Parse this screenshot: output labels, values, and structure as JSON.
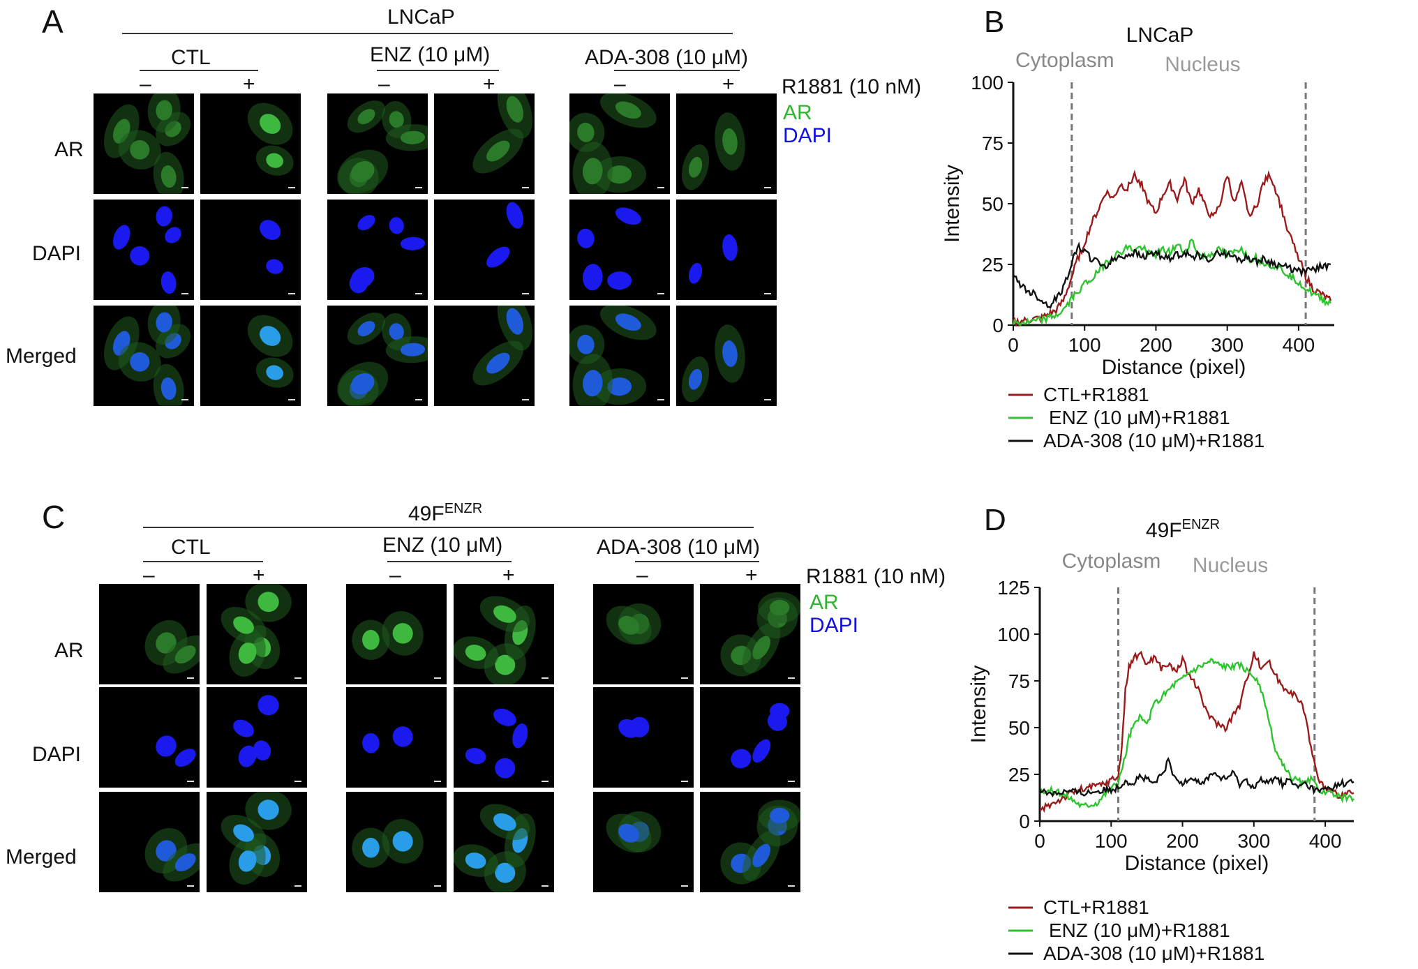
{
  "panels": {
    "A": {
      "letter": "A",
      "cell_line": "LNCaP",
      "groups": [
        "CTL",
        "ENZ (10 μM)",
        "ADA-308 (10 μM)"
      ],
      "minus": "–",
      "plus": "+",
      "treatment": "R1881 (10 nM)",
      "legend_ar": "AR",
      "legend_dapi": "DAPI",
      "rows": [
        "AR",
        "DAPI",
        "Merged"
      ]
    },
    "C": {
      "letter": "C",
      "cell_line": "49F",
      "cell_line_sup": "ENZR",
      "groups": [
        "CTL",
        "ENZ (10 μM)",
        "ADA-308 (10 μM)"
      ],
      "minus": "–",
      "plus": "+",
      "treatment": "R1881 (10 nM)",
      "legend_ar": "AR",
      "legend_dapi": "DAPI",
      "rows": [
        "AR",
        "DAPI",
        "Merged"
      ]
    }
  },
  "chart_data": [
    {
      "type": "line",
      "letter": "B",
      "title": "LNCaP",
      "xlabel": "Distance (pixel)",
      "ylabel": "Intensity",
      "xlim": [
        0,
        450
      ],
      "ylim": [
        0,
        100
      ],
      "xticks": [
        0,
        100,
        200,
        300,
        400
      ],
      "yticks": [
        0,
        25,
        50,
        75,
        100
      ],
      "region_labels": [
        "Cytoplasm",
        "Nucleus"
      ],
      "dividers_x": [
        82,
        410
      ],
      "series": [
        {
          "name": "CTL+R1881",
          "color": "#9b1b1b",
          "x": [
            0,
            20,
            40,
            60,
            70,
            80,
            90,
            100,
            110,
            120,
            130,
            140,
            150,
            160,
            170,
            180,
            190,
            200,
            210,
            220,
            230,
            240,
            250,
            260,
            270,
            280,
            290,
            300,
            310,
            320,
            330,
            340,
            350,
            360,
            370,
            380,
            390,
            400,
            410,
            420,
            430,
            445
          ],
          "y": [
            1,
            2,
            3,
            6,
            10,
            18,
            27,
            34,
            42,
            48,
            55,
            52,
            58,
            56,
            62,
            58,
            50,
            46,
            54,
            58,
            52,
            60,
            50,
            56,
            48,
            44,
            50,
            62,
            50,
            58,
            46,
            48,
            58,
            62,
            54,
            44,
            35,
            28,
            20,
            15,
            13,
            10
          ]
        },
        {
          "name": "ENZ (10 μM)+R1881",
          "color": "#2ec42e",
          "x": [
            0,
            20,
            40,
            60,
            70,
            80,
            90,
            100,
            110,
            120,
            130,
            140,
            150,
            160,
            170,
            180,
            190,
            200,
            210,
            220,
            230,
            240,
            250,
            260,
            270,
            280,
            290,
            300,
            310,
            320,
            330,
            340,
            350,
            360,
            370,
            380,
            390,
            400,
            410,
            420,
            430,
            445
          ],
          "y": [
            1,
            1,
            2,
            4,
            6,
            10,
            14,
            17,
            19,
            22,
            26,
            28,
            30,
            32,
            31,
            32,
            30,
            29,
            31,
            30,
            33,
            30,
            35,
            29,
            28,
            30,
            31,
            29,
            30,
            32,
            27,
            28,
            26,
            25,
            24,
            22,
            20,
            18,
            15,
            13,
            11,
            9
          ]
        },
        {
          "name": "ADA-308 (10 μM)+R1881",
          "color": "#111111",
          "x": [
            0,
            10,
            20,
            30,
            40,
            50,
            60,
            70,
            80,
            90,
            100,
            110,
            120,
            130,
            140,
            150,
            160,
            170,
            180,
            190,
            200,
            210,
            220,
            230,
            240,
            250,
            260,
            270,
            280,
            290,
            300,
            310,
            320,
            330,
            340,
            350,
            360,
            370,
            380,
            390,
            400,
            410,
            420,
            430,
            445
          ],
          "y": [
            20,
            17,
            14,
            13,
            10,
            8,
            11,
            15,
            24,
            32,
            31,
            27,
            26,
            24,
            27,
            28,
            29,
            30,
            28,
            29,
            30,
            28,
            27,
            29,
            30,
            28,
            29,
            27,
            28,
            30,
            29,
            28,
            27,
            28,
            26,
            27,
            26,
            25,
            24,
            23,
            22,
            22,
            23,
            24,
            25
          ]
        }
      ]
    },
    {
      "type": "line",
      "letter": "D",
      "title": "49F",
      "title_sup": "ENZR",
      "xlabel": "Distance (pixel)",
      "ylabel": "Intensity",
      "xlim": [
        0,
        440
      ],
      "ylim": [
        0,
        125
      ],
      "xticks": [
        0,
        100,
        200,
        300,
        400
      ],
      "yticks": [
        0,
        25,
        50,
        75,
        100,
        125
      ],
      "region_labels": [
        "Cytoplasm",
        "Nucleus"
      ],
      "dividers_x": [
        110,
        385
      ],
      "series": [
        {
          "name": "CTL+R1881",
          "color": "#9b1b1b",
          "x": [
            0,
            10,
            20,
            30,
            40,
            50,
            60,
            70,
            80,
            90,
            100,
            110,
            115,
            120,
            125,
            130,
            140,
            150,
            160,
            170,
            180,
            190,
            200,
            210,
            220,
            230,
            240,
            250,
            260,
            270,
            280,
            290,
            300,
            310,
            320,
            330,
            340,
            350,
            360,
            370,
            380,
            390,
            400,
            410,
            420,
            440
          ],
          "y": [
            5,
            8,
            10,
            12,
            14,
            16,
            17,
            18,
            19,
            20,
            22,
            24,
            40,
            70,
            82,
            86,
            90,
            84,
            88,
            82,
            84,
            80,
            86,
            78,
            72,
            62,
            55,
            52,
            50,
            56,
            62,
            76,
            90,
            82,
            86,
            78,
            72,
            70,
            66,
            60,
            40,
            22,
            18,
            15,
            14,
            15
          ]
        },
        {
          "name": "ENZ (10 μM)+R1881",
          "color": "#2ec42e",
          "x": [
            0,
            20,
            40,
            60,
            80,
            100,
            110,
            120,
            125,
            130,
            140,
            150,
            160,
            170,
            180,
            190,
            200,
            210,
            220,
            230,
            240,
            250,
            260,
            270,
            280,
            290,
            300,
            310,
            320,
            330,
            340,
            350,
            360,
            370,
            380,
            390,
            400,
            410,
            420,
            440
          ],
          "y": [
            17,
            16,
            13,
            8,
            10,
            18,
            20,
            35,
            45,
            50,
            55,
            52,
            62,
            66,
            70,
            74,
            76,
            80,
            82,
            84,
            86,
            84,
            83,
            82,
            84,
            80,
            78,
            70,
            55,
            38,
            30,
            24,
            22,
            20,
            22,
            18,
            15,
            14,
            13,
            12
          ]
        },
        {
          "name": "ADA-308 (10 μM)+R1881",
          "color": "#111111",
          "x": [
            0,
            20,
            40,
            60,
            80,
            100,
            110,
            120,
            130,
            140,
            150,
            160,
            170,
            180,
            190,
            200,
            210,
            220,
            230,
            240,
            250,
            260,
            270,
            280,
            290,
            300,
            310,
            320,
            330,
            340,
            350,
            360,
            370,
            380,
            390,
            400,
            410,
            420,
            440
          ],
          "y": [
            16,
            15,
            16,
            15,
            16,
            17,
            18,
            22,
            20,
            24,
            22,
            20,
            24,
            32,
            22,
            20,
            24,
            22,
            20,
            26,
            24,
            22,
            26,
            20,
            22,
            18,
            22,
            20,
            24,
            20,
            22,
            18,
            20,
            18,
            16,
            17,
            18,
            20,
            21
          ]
        }
      ]
    }
  ]
}
